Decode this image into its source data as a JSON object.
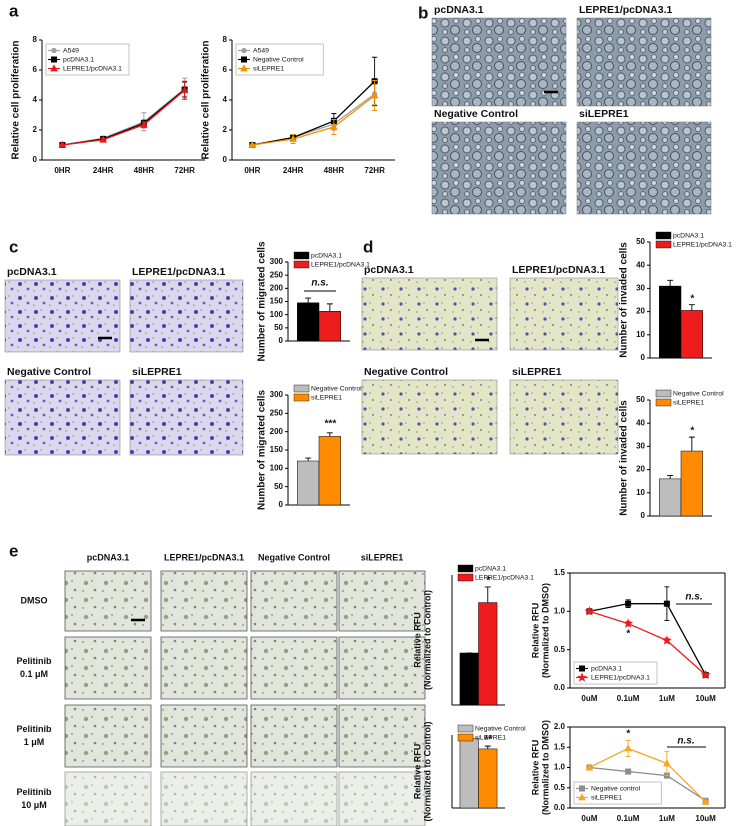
{
  "panels": [
    "a",
    "b",
    "c",
    "d",
    "e"
  ],
  "image_labels": {
    "b": [
      "pcDNA3.1",
      "LEPRE1/pcDNA3.1",
      "Negative Control",
      "siLEPRE1"
    ],
    "c": [
      "pcDNA3.1",
      "LEPRE1/pcDNA3.1",
      "Negative Control",
      "siLEPRE1"
    ],
    "d": [
      "pcDNA3.1",
      "LEPRE1/pcDNA3.1",
      "Negative Control",
      "siLEPRE1"
    ],
    "e": [
      "pcDNA3.1",
      "LEPRE1/pcDNA3.1",
      "Negative Control",
      "siLEPRE1"
    ]
  },
  "row_labels": [
    [
      "DMSO"
    ],
    [
      "Pelitinib",
      "0.1 μM"
    ],
    [
      "Pelitinib",
      "1 μM"
    ],
    [
      "Pelitinib",
      "10 μM"
    ]
  ],
  "chart_data": [
    {
      "type": "line",
      "y_label": "Relative cell proliferation",
      "categories": [
        "0HR",
        "24HR",
        "48HR",
        "72HR"
      ],
      "ylim": [
        0,
        8
      ],
      "yticks": [
        0,
        2,
        4,
        6,
        8
      ],
      "legend": "upper left",
      "series": [
        {
          "name": "A549",
          "color": "#a0a0a0",
          "marker": "circle",
          "values": [
            1,
            1.45,
            2.55,
            4.75
          ],
          "errors": [
            0.05,
            0.15,
            0.6,
            0.7
          ]
        },
        {
          "name": "pcDNA3.1",
          "color": "#000000",
          "marker": "square",
          "values": [
            1,
            1.4,
            2.45,
            4.7
          ],
          "errors": [
            0.05,
            0.1,
            0.2,
            0.5
          ]
        },
        {
          "name": "LEPRE1/pcDNA3.1",
          "color": "#e41a1c",
          "marker": "triangle",
          "values": [
            1,
            1.35,
            2.35,
            4.65
          ],
          "errors": [
            0.05,
            0.1,
            0.2,
            0.6
          ]
        }
      ]
    },
    {
      "type": "line",
      "y_label": "Relative cell proliferation",
      "categories": [
        "0HR",
        "24HR",
        "48HR",
        "72HR"
      ],
      "ylim": [
        0,
        8
      ],
      "yticks": [
        0,
        2,
        4,
        6,
        8
      ],
      "legend": "upper left",
      "series": [
        {
          "name": "A549",
          "color": "#a0a0a0",
          "marker": "circle",
          "values": [
            1,
            1.5,
            2.4,
            4.4
          ],
          "errors": [
            0.05,
            0.15,
            0.4,
            0.8
          ]
        },
        {
          "name": "Negative Control",
          "color": "#000000",
          "marker": "square",
          "values": [
            1,
            1.5,
            2.6,
            5.25
          ],
          "errors": [
            0.05,
            0.2,
            0.5,
            1.6
          ]
        },
        {
          "name": "siLEPRE1",
          "color": "#f39200",
          "marker": "triangle",
          "values": [
            1,
            1.4,
            2.2,
            4.3
          ],
          "errors": [
            0.05,
            0.3,
            0.5,
            1.0
          ]
        }
      ]
    },
    {
      "type": "bar",
      "y_label": "Number of migrated cells",
      "categories": [
        null
      ],
      "ylim": [
        0,
        300
      ],
      "yticks": [
        0,
        50,
        100,
        150,
        200,
        250,
        300
      ],
      "legend": "top",
      "annotations": [
        "n.s."
      ],
      "series": [
        {
          "name": "pcDNA3.1",
          "color": "#000000",
          "values": [
            145
          ],
          "errors": [
            18
          ]
        },
        {
          "name": "LEPRE1/pcDNA3.1",
          "color": "#ee1c1c",
          "values": [
            113
          ],
          "errors": [
            28
          ]
        }
      ]
    },
    {
      "type": "bar",
      "y_label": "Number of migrated cells",
      "categories": [
        null
      ],
      "ylim": [
        0,
        300
      ],
      "yticks": [
        0,
        50,
        100,
        150,
        200,
        250,
        300
      ],
      "legend": "top",
      "annotations": [
        "***"
      ],
      "series": [
        {
          "name": "Negative Control",
          "color": "#bdbdbd",
          "values": [
            120
          ],
          "errors": [
            8
          ]
        },
        {
          "name": "siLEPRE1",
          "color": "#ff8c00",
          "values": [
            187
          ],
          "errors": [
            10
          ]
        }
      ]
    },
    {
      "type": "bar",
      "y_label": "Number of invaded cells",
      "categories": [
        null
      ],
      "ylim": [
        0,
        50
      ],
      "yticks": [
        0,
        10,
        20,
        30,
        40,
        50
      ],
      "legend": "top",
      "annotations": [
        "*"
      ],
      "series": [
        {
          "name": "pcDNA3.1",
          "color": "#000000",
          "values": [
            31
          ],
          "errors": [
            2.5
          ]
        },
        {
          "name": "LEPRE1/pcDNA3.1",
          "color": "#ee1c1c",
          "values": [
            20.5
          ],
          "errors": [
            2.5
          ]
        }
      ]
    },
    {
      "type": "bar",
      "y_label": "Number of invaded cells",
      "categories": [
        null
      ],
      "ylim": [
        0,
        50
      ],
      "yticks": [
        0,
        10,
        20,
        30,
        40,
        50
      ],
      "legend": "top",
      "annotations": [
        "*"
      ],
      "series": [
        {
          "name": "Negative Control",
          "color": "#bdbdbd",
          "values": [
            16
          ],
          "errors": [
            1.5
          ]
        },
        {
          "name": "siLEPRE1",
          "color": "#ff8c00",
          "values": [
            28
          ],
          "errors": [
            6
          ]
        }
      ]
    },
    {
      "type": "bar",
      "y_label": [
        "Relative RFU",
        "(Normalized to Control)"
      ],
      "categories": [
        null
      ],
      "ylim": [
        0,
        2.5
      ],
      "legend": "top",
      "annotations": [
        "*"
      ],
      "series": [
        {
          "name": "pcDNA3.1",
          "color": "#000000",
          "values": [
            1
          ],
          "errors": [
            0
          ]
        },
        {
          "name": "LEPRE1/pcDNA3.1",
          "color": "#ee1c1c",
          "values": [
            1.97
          ],
          "errors": [
            0.3
          ]
        }
      ]
    },
    {
      "type": "bar",
      "y_label": [
        "Relative RFU",
        "(Normalized to Control)"
      ],
      "categories": [
        null
      ],
      "ylim": [
        0,
        1.05
      ],
      "legend": "top",
      "annotations": [
        "**"
      ],
      "series": [
        {
          "name": "Negative Control",
          "color": "#bdbdbd",
          "values": [
            1
          ],
          "errors": [
            0
          ]
        },
        {
          "name": "siLEPRE1",
          "color": "#ff8c00",
          "values": [
            0.85
          ],
          "errors": [
            0.04
          ]
        }
      ]
    },
    {
      "type": "line",
      "y_label": [
        "Relative RFU",
        "(Normalized to DMSO)"
      ],
      "categories": [
        "0uM",
        "0.1uM",
        "1uM",
        "10uM"
      ],
      "ylim": [
        0,
        1.5
      ],
      "yticks": [
        {
          "value": 0,
          "label": "0.0"
        },
        0.5,
        {
          "value": 1,
          "label": "1.0"
        },
        1.5
      ],
      "legend": "lower left",
      "annotations": [
        "*",
        "n.s."
      ],
      "series": [
        {
          "name": "pcDNA3.1",
          "color": "#000000",
          "marker": "square",
          "values": [
            1,
            1.1,
            1.1,
            0.17
          ],
          "errors": [
            0.02,
            0.05,
            0.22,
            0.03
          ]
        },
        {
          "name": "LEPRE1/pcDNA3.1",
          "color": "#ee1c1c",
          "marker": "star",
          "values": [
            1,
            0.84,
            0.62,
            0.17
          ],
          "errors": [
            0.02,
            0.03,
            0.03,
            0.02
          ]
        }
      ]
    },
    {
      "type": "line",
      "y_label": [
        "Relative RFU",
        "(Normalized to DMSO)"
      ],
      "categories": [
        "0uM",
        "0.1uM",
        "1uM",
        "10uM"
      ],
      "ylim": [
        0,
        2.0
      ],
      "yticks": [
        {
          "value": 0,
          "label": "0.0"
        },
        0.5,
        {
          "value": 1,
          "label": "1.0"
        },
        1.5,
        {
          "value": 2,
          "label": "2.0"
        }
      ],
      "legend": "lower left",
      "annotations": [
        "*",
        "n.s."
      ],
      "series": [
        {
          "name": "Negative control",
          "color": "#8c8c8c",
          "marker": "square",
          "values": [
            1,
            0.9,
            0.8,
            0.18
          ],
          "errors": [
            0.02,
            0.05,
            0.05,
            0.03
          ]
        },
        {
          "name": "siLEPRE1",
          "color": "#f5a623",
          "marker": "triangle",
          "values": [
            1,
            1.47,
            1.1,
            0.15
          ],
          "errors": [
            0.02,
            0.2,
            0.3,
            0.03
          ]
        }
      ]
    }
  ]
}
